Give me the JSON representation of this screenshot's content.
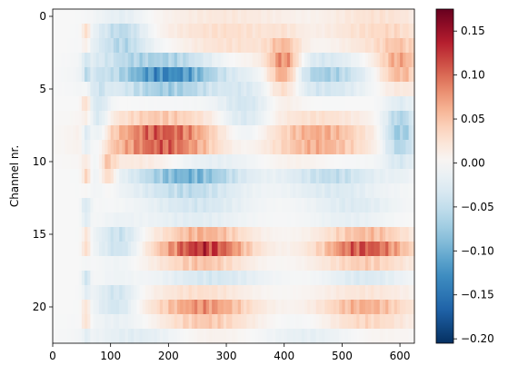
{
  "chart_data": {
    "type": "heatmap",
    "ylabel": "Channel nr.",
    "xlabel": "",
    "x_ticks": [
      0,
      100,
      200,
      300,
      400,
      500,
      600
    ],
    "y_ticks": [
      0,
      5,
      10,
      15,
      20
    ],
    "xlim": [
      0,
      625
    ],
    "ylim": [
      22.5,
      -0.5
    ],
    "n_channels": 23,
    "n_samples": 625,
    "colorbar": {
      "vmin": -0.205,
      "vmax": 0.175,
      "ticks": [
        "0.15",
        "0.10",
        "0.05",
        "0.00",
        "−0.05",
        "−0.10",
        "−0.15",
        "−0.20"
      ],
      "tick_values": [
        0.15,
        0.1,
        0.05,
        0.0,
        -0.05,
        -0.1,
        -0.15,
        -0.2
      ],
      "colormap": "RdBu_r"
    },
    "colors": {
      "cmap_stops": [
        "#053061",
        "#2166ac",
        "#4393c3",
        "#92c5de",
        "#d1e5f0",
        "#f7f7f7",
        "#fddbc7",
        "#f4a582",
        "#d6604d",
        "#b2182b",
        "#67001f"
      ]
    },
    "blobs": [
      {
        "t": 260,
        "ch": 16,
        "st": 55,
        "sc": 0.9,
        "v": 0.16
      },
      {
        "t": 540,
        "ch": 16,
        "st": 55,
        "sc": 0.9,
        "v": 0.14
      },
      {
        "t": 190,
        "ch": 8.5,
        "st": 65,
        "sc": 1.1,
        "v": 0.15
      },
      {
        "t": 460,
        "ch": 8.5,
        "st": 60,
        "sc": 1.1,
        "v": 0.09
      },
      {
        "t": 200,
        "ch": 4,
        "st": 65,
        "sc": 0.9,
        "v": -0.17
      },
      {
        "t": 470,
        "ch": 4,
        "st": 50,
        "sc": 0.9,
        "v": -0.09
      },
      {
        "t": 230,
        "ch": 11,
        "st": 65,
        "sc": 0.8,
        "v": -0.13
      },
      {
        "t": 480,
        "ch": 11,
        "st": 55,
        "sc": 0.8,
        "v": -0.07
      },
      {
        "t": 260,
        "ch": 20,
        "st": 60,
        "sc": 1.0,
        "v": 0.1
      },
      {
        "t": 540,
        "ch": 20,
        "st": 55,
        "sc": 1.0,
        "v": 0.08
      },
      {
        "t": 110,
        "ch": 19.5,
        "st": 25,
        "sc": 0.8,
        "v": -0.06
      },
      {
        "t": 115,
        "ch": 15.5,
        "st": 25,
        "sc": 0.8,
        "v": -0.07
      },
      {
        "t": 270,
        "ch": 18,
        "st": 60,
        "sc": 0.7,
        "v": -0.07
      },
      {
        "t": 540,
        "ch": 18,
        "st": 50,
        "sc": 0.7,
        "v": -0.06
      },
      {
        "t": 250,
        "ch": 13.5,
        "st": 60,
        "sc": 0.8,
        "v": -0.05
      },
      {
        "t": 520,
        "ch": 13.5,
        "st": 50,
        "sc": 0.8,
        "v": -0.04
      },
      {
        "t": 120,
        "ch": 1.5,
        "st": 30,
        "sc": 1.0,
        "v": -0.08
      },
      {
        "t": 400,
        "ch": 3.5,
        "st": 20,
        "sc": 1.2,
        "v": 0.12
      },
      {
        "t": 600,
        "ch": 3.5,
        "st": 25,
        "sc": 1.2,
        "v": 0.08
      },
      {
        "t": 600,
        "ch": 8,
        "st": 20,
        "sc": 1.5,
        "v": -0.1
      },
      {
        "t": 300,
        "ch": 1.5,
        "st": 80,
        "sc": 1.5,
        "v": 0.04
      },
      {
        "t": 560,
        "ch": 1,
        "st": 60,
        "sc": 1.5,
        "v": 0.04
      },
      {
        "t": 330,
        "ch": 6.5,
        "st": 30,
        "sc": 1.5,
        "v": -0.05
      },
      {
        "t": 95,
        "ch": 10.5,
        "st": 10,
        "sc": 0.8,
        "v": 0.07
      },
      {
        "t": 80,
        "ch": 7,
        "st": 12,
        "sc": 2.5,
        "v": -0.05
      },
      {
        "t": 150,
        "ch": 22,
        "st": 60,
        "sc": 0.8,
        "v": -0.03
      },
      {
        "t": 450,
        "ch": 22,
        "st": 60,
        "sc": 0.8,
        "v": -0.025
      }
    ]
  }
}
